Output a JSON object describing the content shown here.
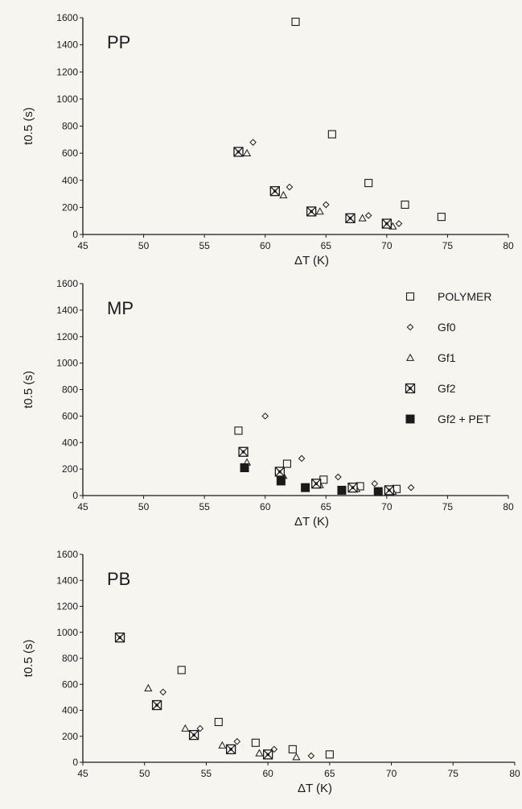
{
  "chart_data": [
    {
      "type": "scatter",
      "title": "PP",
      "xlabel": "ΔT (K)",
      "ylabel": "t0.5 (s)",
      "xlim": [
        45,
        80
      ],
      "ylim": [
        0,
        1600
      ],
      "xticks": [
        "45",
        "50",
        "55",
        "60",
        "65",
        "70",
        "75",
        "80"
      ],
      "yticks": [
        "0",
        "200",
        "400",
        "600",
        "800",
        "1000",
        "1200",
        "1400",
        "1600"
      ],
      "series": [
        {
          "name": "POLYMER",
          "marker": "square",
          "points": [
            [
              62.5,
              1570
            ],
            [
              65.5,
              740
            ],
            [
              68.5,
              380
            ],
            [
              71.5,
              220
            ],
            [
              74.5,
              130
            ]
          ]
        },
        {
          "name": "Gf0",
          "marker": "diamond",
          "points": [
            [
              59,
              680
            ],
            [
              62,
              350
            ],
            [
              65,
              220
            ],
            [
              68.5,
              140
            ],
            [
              71,
              80
            ]
          ]
        },
        {
          "name": "Gf1",
          "marker": "triangle",
          "points": [
            [
              58.5,
              600
            ],
            [
              61.5,
              290
            ],
            [
              64.5,
              170
            ],
            [
              68,
              120
            ],
            [
              70.5,
              60
            ]
          ]
        },
        {
          "name": "Gf2",
          "marker": "crossed-square",
          "points": [
            [
              57.8,
              610
            ],
            [
              60.8,
              320
            ],
            [
              63.8,
              170
            ],
            [
              67,
              120
            ],
            [
              70,
              80
            ]
          ]
        }
      ]
    },
    {
      "type": "scatter",
      "title": "MP",
      "xlabel": "ΔT (K)",
      "ylabel": "t0.5 (s)",
      "xlim": [
        45,
        80
      ],
      "ylim": [
        0,
        1600
      ],
      "xticks": [
        "45",
        "50",
        "55",
        "60",
        "65",
        "70",
        "75",
        "80"
      ],
      "yticks": [
        "0",
        "200",
        "400",
        "600",
        "800",
        "1000",
        "1200",
        "1400",
        "1600"
      ],
      "legend": {
        "position": "right",
        "entries": [
          "POLYMER",
          "Gf0",
          "Gf1",
          "Gf2",
          "Gf2 + PET"
        ]
      },
      "series": [
        {
          "name": "POLYMER",
          "marker": "square",
          "points": [
            [
              57.8,
              490
            ],
            [
              61.8,
              240
            ],
            [
              64.8,
              120
            ],
            [
              67.8,
              70
            ],
            [
              70.8,
              50
            ]
          ]
        },
        {
          "name": "Gf0",
          "marker": "diamond",
          "points": [
            [
              60,
              600
            ],
            [
              63,
              280
            ],
            [
              66,
              140
            ],
            [
              69,
              90
            ],
            [
              72,
              60
            ]
          ]
        },
        {
          "name": "Gf1",
          "marker": "triangle",
          "points": [
            [
              58.5,
              250
            ],
            [
              61.5,
              150
            ],
            [
              64.5,
              80
            ],
            [
              67.5,
              50
            ],
            [
              70.5,
              30
            ]
          ]
        },
        {
          "name": "Gf2",
          "marker": "crossed-square",
          "points": [
            [
              58.2,
              330
            ],
            [
              61.2,
              180
            ],
            [
              64.2,
              90
            ],
            [
              67.2,
              60
            ],
            [
              70.2,
              40
            ]
          ]
        },
        {
          "name": "Gf2 + PET",
          "marker": "filled-square",
          "points": [
            [
              58.3,
              210
            ],
            [
              61.3,
              110
            ],
            [
              63.3,
              60
            ],
            [
              66.3,
              40
            ],
            [
              69.3,
              30
            ]
          ]
        }
      ]
    },
    {
      "type": "scatter",
      "title": "PB",
      "xlabel": "ΔT (K)",
      "ylabel": "t0.5 (s)",
      "xlim": [
        45,
        80
      ],
      "ylim": [
        0,
        1600
      ],
      "xticks": [
        "45",
        "50",
        "55",
        "60",
        "65",
        "70",
        "75",
        "80"
      ],
      "yticks": [
        "0",
        "200",
        "400",
        "600",
        "800",
        "1000",
        "1200",
        "1400",
        "1600"
      ],
      "series": [
        {
          "name": "POLYMER",
          "marker": "square",
          "points": [
            [
              53,
              710
            ],
            [
              56,
              310
            ],
            [
              59,
              150
            ],
            [
              62,
              100
            ],
            [
              65,
              60
            ]
          ]
        },
        {
          "name": "Gf0",
          "marker": "diamond",
          "points": [
            [
              51.5,
              540
            ],
            [
              54.5,
              260
            ],
            [
              57.5,
              160
            ],
            [
              60.5,
              100
            ],
            [
              63.5,
              50
            ]
          ]
        },
        {
          "name": "Gf1",
          "marker": "triangle",
          "points": [
            [
              50.3,
              570
            ],
            [
              53.3,
              260
            ],
            [
              56.3,
              130
            ],
            [
              59.3,
              70
            ],
            [
              62.3,
              40
            ]
          ]
        },
        {
          "name": "Gf2",
          "marker": "crossed-square",
          "points": [
            [
              48,
              960
            ],
            [
              51,
              440
            ],
            [
              54,
              210
            ],
            [
              57,
              100
            ],
            [
              60,
              60
            ]
          ]
        }
      ]
    }
  ]
}
